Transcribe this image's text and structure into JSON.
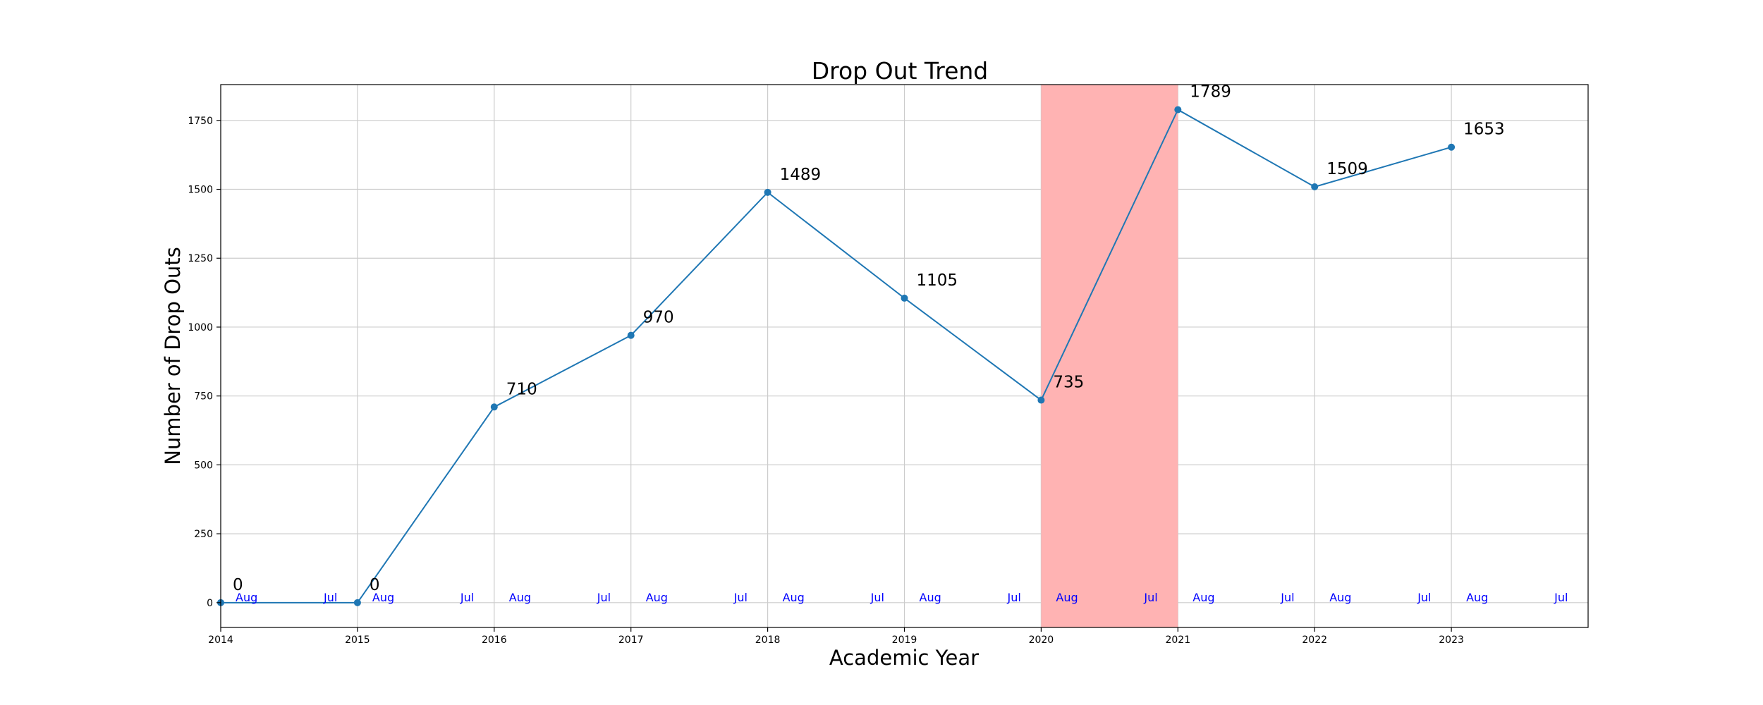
{
  "chart_data": {
    "type": "line",
    "title": "Drop Out Trend",
    "xlabel": "Academic Year",
    "ylabel": "Number of Drop Outs",
    "x": [
      2014,
      2015,
      2016,
      2017,
      2018,
      2019,
      2020,
      2021,
      2022,
      2023
    ],
    "values": [
      0,
      0,
      710,
      970,
      1489,
      1105,
      735,
      1789,
      1509,
      1653
    ],
    "data_labels": [
      "0",
      "0",
      "710",
      "970",
      "1489",
      "1105",
      "735",
      "1789",
      "1509",
      "1653"
    ],
    "xlim": [
      2014,
      2024
    ],
    "ylim": [
      -90,
      1880
    ],
    "x_ticks": [
      2014,
      2015,
      2016,
      2017,
      2018,
      2019,
      2020,
      2021,
      2022,
      2023
    ],
    "x_tick_labels": [
      "2014",
      "2015",
      "2016",
      "2017",
      "2018",
      "2019",
      "2020",
      "2021",
      "2022",
      "2023"
    ],
    "y_ticks": [
      0,
      250,
      500,
      750,
      1000,
      1250,
      1500,
      1750
    ],
    "y_tick_labels": [
      "0",
      "250",
      "500",
      "750",
      "1000",
      "1250",
      "1500",
      "1750"
    ],
    "month_annotations": {
      "start_text": "Aug",
      "end_text": "Jul",
      "start_years": [
        2014,
        2015,
        2016,
        2017,
        2018,
        2019,
        2020,
        2021,
        2022,
        2023
      ],
      "end_years": [
        2014,
        2015,
        2016,
        2017,
        2018,
        2019,
        2020,
        2021,
        2022,
        2023
      ]
    },
    "highlight_span": [
      2020,
      2021
    ],
    "grid": true,
    "colors": {
      "line": "#1f77b4",
      "marker": "#1f77b4",
      "highlight": "#ffb3b3",
      "grid": "#cccccc",
      "month_text": "#0000ff"
    }
  }
}
